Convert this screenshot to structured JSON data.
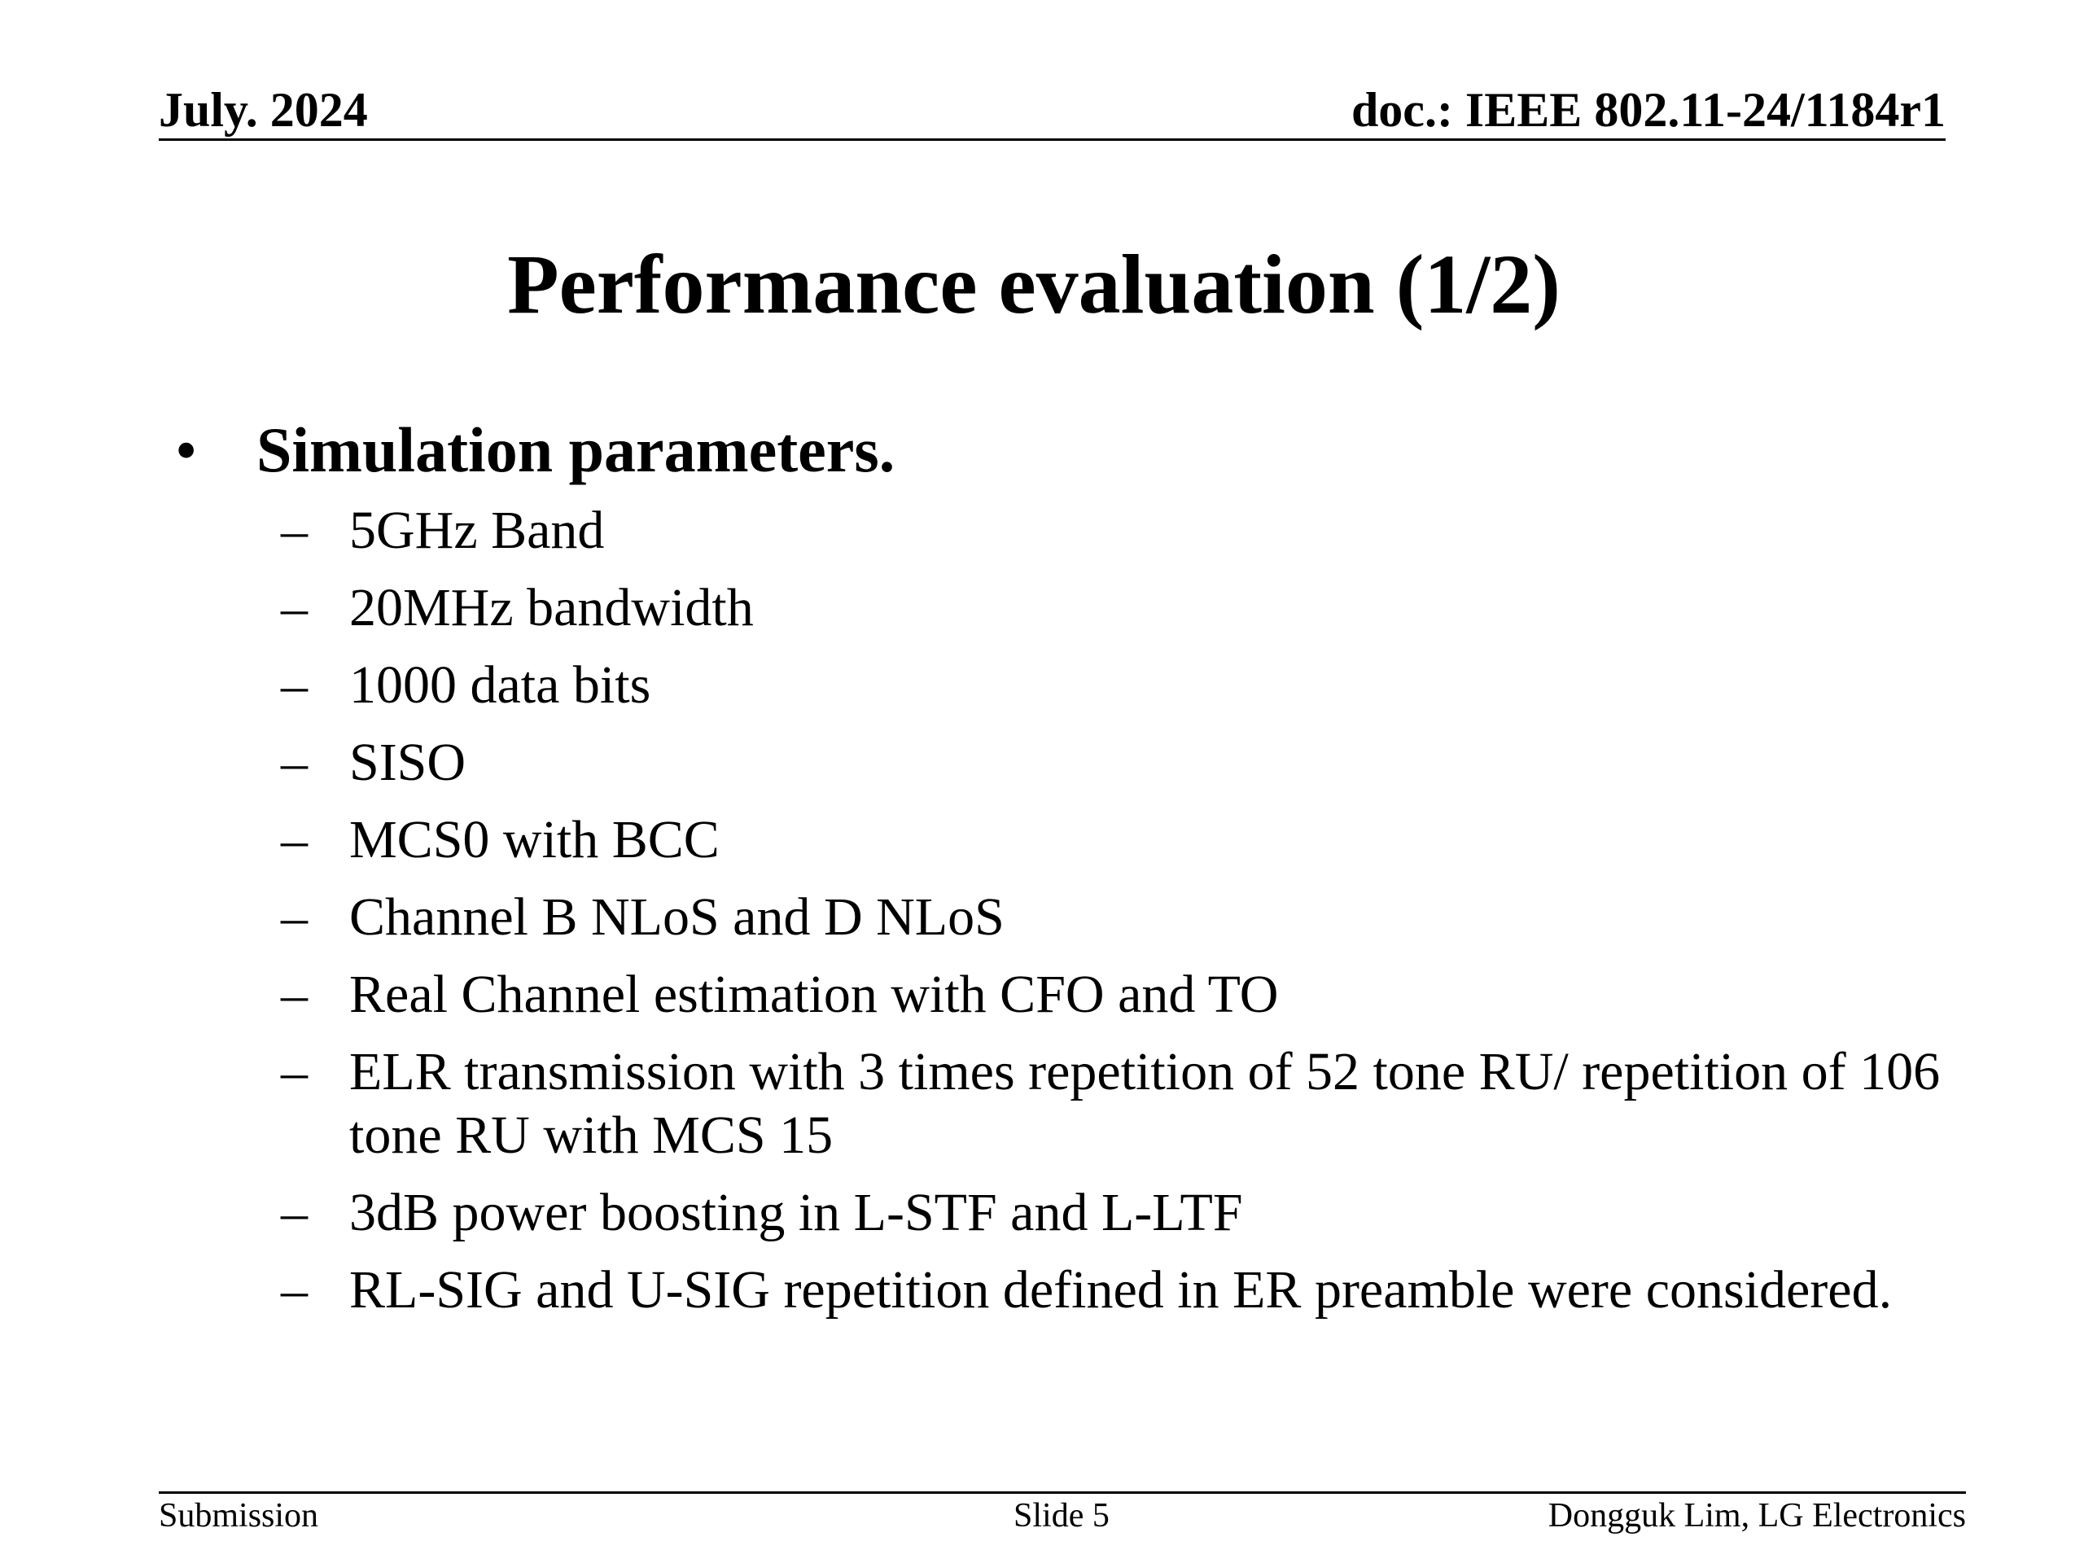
{
  "header": {
    "date": "July. 2024",
    "doc_id": "doc.: IEEE 802.11-24/1184r1"
  },
  "title": "Performance evaluation (1/2)",
  "main": {
    "bullet_symbol": "•",
    "bullet_heading": "Simulation parameters.",
    "dash_symbol": "–",
    "items": [
      "5GHz Band",
      "20MHz bandwidth",
      "1000 data bits",
      "SISO",
      "MCS0 with BCC",
      "Channel B NLoS and D NLoS",
      "Real Channel estimation with CFO and TO",
      "ELR transmission with 3 times repetition of 52 tone RU/ repetition of 106 tone RU with MCS 15",
      "3dB power boosting in L-STF and L-LTF",
      "RL-SIG and U-SIG repetition defined in ER preamble were considered."
    ]
  },
  "footer": {
    "left": "Submission",
    "center": "Slide 5",
    "right": "Dongguk Lim, LG Electronics"
  }
}
